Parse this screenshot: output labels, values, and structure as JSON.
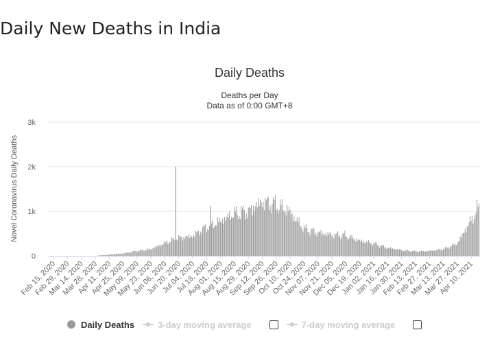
{
  "page": {
    "heading": "Daily New Deaths in India"
  },
  "chart_data": {
    "type": "bar",
    "title": "Daily Deaths",
    "subtitle_line1": "Deaths per Day",
    "subtitle_line2": "Data as of 0:00 GMT+8",
    "ylabel": "Novel Coronavirus Daily Deaths",
    "ylim": [
      0,
      3000
    ],
    "yticks": [
      {
        "value": 0,
        "label": "0"
      },
      {
        "value": 1000,
        "label": "1k"
      },
      {
        "value": 2000,
        "label": "2k"
      },
      {
        "value": 3000,
        "label": "3k"
      }
    ],
    "grid": true,
    "bar_color": "#999999",
    "x_tick_labels": [
      "Feb 15, 2020",
      "Feb 29, 2020",
      "Mar 14, 2020",
      "Mar 28, 2020",
      "Apr 11, 2020",
      "Apr 25, 2020",
      "May 09, 2020",
      "May 23, 2020",
      "Jun 06, 2020",
      "Jun 20, 2020",
      "Jul 04, 2020",
      "Jul 18, 2020",
      "Aug 01, 2020",
      "Aug 15, 2020",
      "Aug 29, 2020",
      "Sep 12, 2020",
      "Sep 26, 2020",
      "Oct 10, 2020",
      "Oct 24, 2020",
      "Nov 07, 2020",
      "Nov 21, 2020",
      "Dec 05, 2020",
      "Dec 19, 2020",
      "Jan 02, 2021",
      "Jan 16, 2021",
      "Jan 30, 2021",
      "Feb 13, 2021",
      "Feb 27, 2021",
      "Mar 13, 2021",
      "Mar 27, 2021",
      "Apr 10, 2021"
    ],
    "series": [
      {
        "name": "Daily Deaths",
        "period": "every 14 days, aligned with x tick labels",
        "x": [
          "Feb 15, 2020",
          "Feb 29, 2020",
          "Mar 14, 2020",
          "Mar 28, 2020",
          "Apr 11, 2020",
          "Apr 25, 2020",
          "May 09, 2020",
          "May 23, 2020",
          "Jun 06, 2020",
          "Jun 20, 2020",
          "Jul 04, 2020",
          "Jul 18, 2020",
          "Aug 01, 2020",
          "Aug 15, 2020",
          "Aug 29, 2020",
          "Sep 12, 2020",
          "Sep 26, 2020",
          "Oct 10, 2020",
          "Oct 24, 2020",
          "Nov 07, 2020",
          "Nov 21, 2020",
          "Dec 05, 2020",
          "Dec 19, 2020",
          "Jan 02, 2021",
          "Jan 16, 2021",
          "Jan 30, 2021",
          "Feb 13, 2021",
          "Feb 27, 2021",
          "Mar 13, 2021",
          "Mar 27, 2021",
          "Apr 10, 2021"
        ],
        "values": [
          0,
          0,
          0,
          3,
          30,
          55,
          110,
          150,
          290,
          400,
          450,
          650,
          780,
          950,
          1000,
          1150,
          1100,
          950,
          620,
          520,
          480,
          460,
          340,
          280,
          180,
          130,
          100,
          110,
          150,
          280,
          800
        ],
        "peaks": [
          {
            "date": "Jun 17, 2020",
            "value": 2000
          },
          {
            "date": "Jul 22, 2020",
            "value": 1120
          }
        ]
      }
    ],
    "legend": {
      "placement": "bottom",
      "items": [
        {
          "label": "Daily Deaths",
          "active": true
        },
        {
          "label": "3-day moving average",
          "active": false
        },
        {
          "label": "7-day moving average",
          "active": false
        }
      ]
    }
  }
}
